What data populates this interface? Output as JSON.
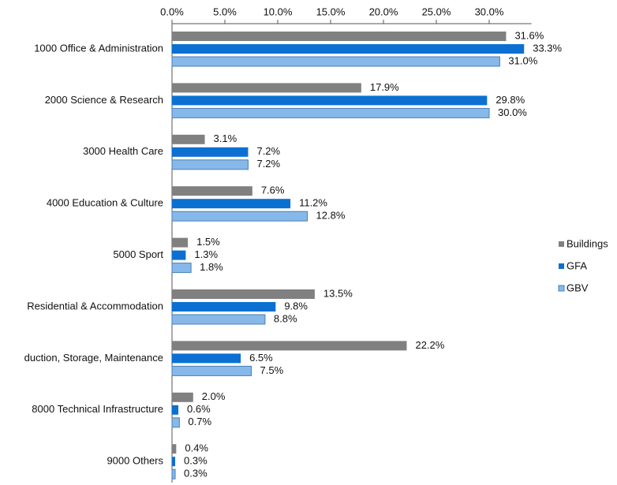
{
  "chart_data": {
    "type": "bar",
    "orientation": "horizontal",
    "categories": [
      "1000 Office & Administration",
      "2000 Science & Research",
      "3000 Health Care",
      "4000 Education & Culture",
      "5000 Sport",
      "Residential & Accommodation",
      "duction, Storage, Maintenance",
      "8000 Technical Infrastructure",
      "9000 Others"
    ],
    "series": [
      {
        "name": "Buildings",
        "color": "#808080",
        "values": [
          31.6,
          17.9,
          3.1,
          7.6,
          1.5,
          13.5,
          22.2,
          2.0,
          0.4
        ],
        "value_labels": [
          "31.6%",
          "17.9%",
          "3.1%",
          "7.6%",
          "1.5%",
          "13.5%",
          "22.2%",
          "2.0%",
          "0.4%"
        ]
      },
      {
        "name": "GFA",
        "color": "#0b70d2",
        "values": [
          33.3,
          29.8,
          7.2,
          11.2,
          1.3,
          9.8,
          6.5,
          0.6,
          0.3
        ],
        "value_labels": [
          "33.3%",
          "29.8%",
          "7.2%",
          "11.2%",
          "1.3%",
          "9.8%",
          "6.5%",
          "0.6%",
          "0.3%"
        ]
      },
      {
        "name": "GBV",
        "color": "#86b9e9",
        "values": [
          31.0,
          30.0,
          7.2,
          12.8,
          1.8,
          8.8,
          7.5,
          0.7,
          0.3
        ],
        "value_labels": [
          "31.0%",
          "30.0%",
          "7.2%",
          "12.8%",
          "1.8%",
          "8.8%",
          "7.5%",
          "0.7%",
          "0.3%"
        ]
      }
    ],
    "xlim": [
      0,
      34
    ],
    "xticks": [
      {
        "value": 0,
        "label": "0.0%"
      },
      {
        "value": 5,
        "label": "5.0%"
      },
      {
        "value": 10,
        "label": "10.0%"
      },
      {
        "value": 15,
        "label": "15.0%"
      },
      {
        "value": 20,
        "label": "20.0%"
      },
      {
        "value": 25,
        "label": "25.0%"
      },
      {
        "value": 30,
        "label": "30.0%"
      }
    ],
    "legend": "right"
  }
}
